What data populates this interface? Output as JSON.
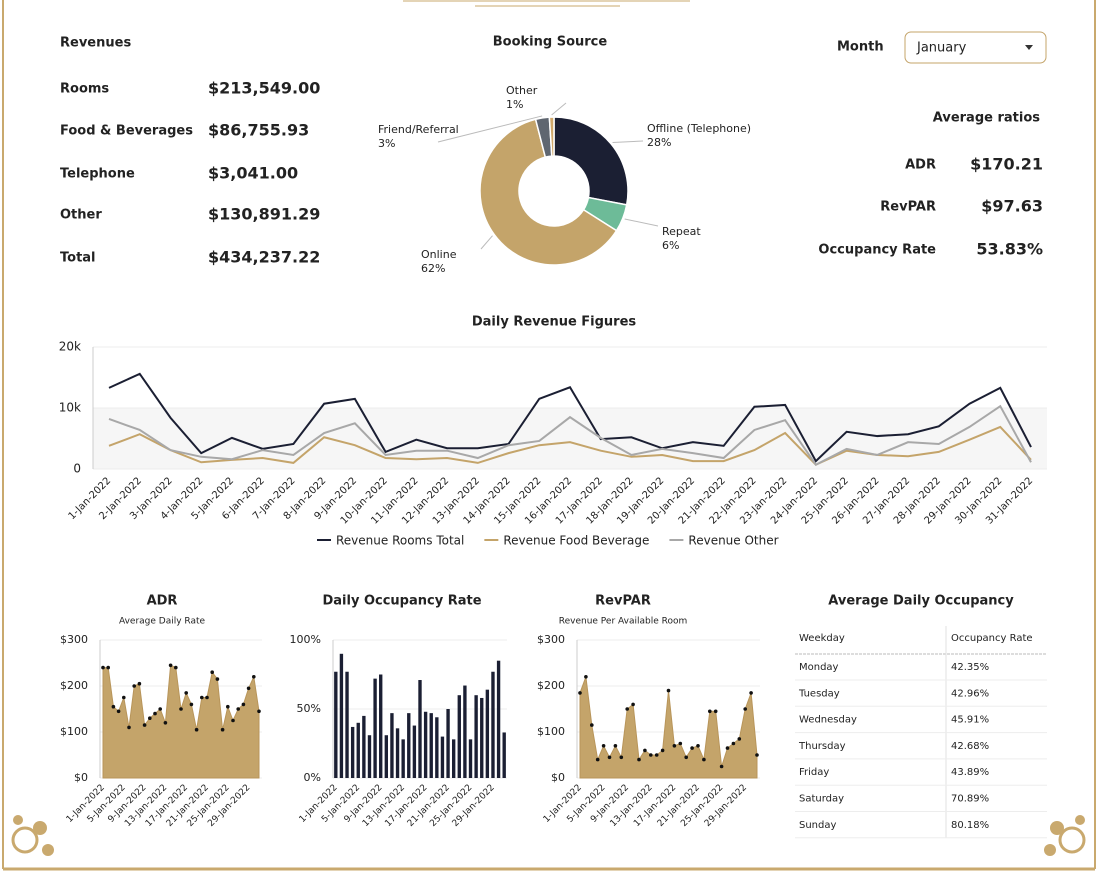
{
  "revenues": {
    "title": "Revenues",
    "items": [
      {
        "label": "Rooms",
        "value": "$213,549.00"
      },
      {
        "label": "Food & Beverages",
        "value": "$86,755.93"
      },
      {
        "label": "Telephone",
        "value": "$3,041.00"
      },
      {
        "label": "Other",
        "value": "$130,891.29"
      },
      {
        "label": "Total",
        "value": "$434,237.22"
      }
    ]
  },
  "month_filter": {
    "label": "Month",
    "value": "January"
  },
  "average_ratios": {
    "title": "Average ratios",
    "items": [
      {
        "label": "ADR",
        "value": "$170.21"
      },
      {
        "label": "RevPAR",
        "value": "$97.63"
      },
      {
        "label": "Occupancy Rate",
        "value": "53.83%"
      }
    ]
  },
  "occupancy_table": {
    "title": "Average Daily Occupancy",
    "header": [
      "Weekday",
      "Occupancy Rate"
    ],
    "rows": [
      [
        "Monday",
        "42.35%"
      ],
      [
        "Tuesday",
        "42.96%"
      ],
      [
        "Wednesday",
        "45.91%"
      ],
      [
        "Thursday",
        "42.68%"
      ],
      [
        "Friday",
        "43.89%"
      ],
      [
        "Saturday",
        "70.89%"
      ],
      [
        "Sunday",
        "80.18%"
      ]
    ]
  },
  "chart_data": [
    {
      "type": "pie",
      "title": "Booking Source",
      "categories": [
        "Offline (Telephone)",
        "Repeat",
        "Online",
        "Friend/Referral",
        "Other"
      ],
      "values": [
        28,
        6,
        62,
        3,
        1
      ],
      "value_labels": [
        "28%",
        "6%",
        "62%",
        "3%",
        "1%"
      ],
      "colors": [
        "#1b1f33",
        "#6dbb98",
        "#c4a46a",
        "#5f6670",
        "#d0a86a"
      ],
      "donut": true
    },
    {
      "type": "line",
      "title": "Daily Revenue Figures",
      "categories": [
        "1-Jan-2022",
        "2-Jan-2022",
        "3-Jan-2022",
        "4-Jan-2022",
        "5-Jan-2022",
        "6-Jan-2022",
        "7-Jan-2022",
        "8-Jan-2022",
        "9-Jan-2022",
        "10-Jan-2022",
        "11-Jan-2022",
        "12-Jan-2022",
        "13-Jan-2022",
        "14-Jan-2022",
        "15-Jan-2022",
        "16-Jan-2022",
        "17-Jan-2022",
        "18-Jan-2022",
        "19-Jan-2022",
        "20-Jan-2022",
        "21-Jan-2022",
        "22-Jan-2022",
        "23-Jan-2022",
        "24-Jan-2022",
        "25-Jan-2022",
        "26-Jan-2022",
        "27-Jan-2022",
        "28-Jan-2022",
        "29-Jan-2022",
        "30-Jan-2022",
        "31-Jan-2022"
      ],
      "series": [
        {
          "name": "Revenue Rooms Total",
          "color": "#1b1f33",
          "values": [
            13300,
            15600,
            8400,
            2600,
            5100,
            3300,
            4100,
            10700,
            11500,
            2800,
            4800,
            3400,
            3400,
            4100,
            11500,
            13400,
            4900,
            5200,
            3400,
            4400,
            3800,
            10200,
            10500,
            1300,
            6100,
            5400,
            5700,
            7000,
            10700,
            13300,
            3600
          ]
        },
        {
          "name": "Revenue Food Beverage",
          "color": "#c4a46a",
          "values": [
            3800,
            5700,
            3100,
            1100,
            1500,
            1800,
            1000,
            5200,
            3900,
            1800,
            1600,
            1800,
            1000,
            2600,
            3900,
            4400,
            3000,
            2000,
            2300,
            1300,
            1300,
            3100,
            5900,
            700,
            3000,
            2300,
            2100,
            2800,
            4800,
            6900,
            1500
          ]
        },
        {
          "name": "Revenue Other",
          "color": "#a8a8a8",
          "values": [
            8200,
            6400,
            3100,
            2000,
            1600,
            3100,
            2300,
            5900,
            7500,
            2300,
            3000,
            3000,
            1800,
            3900,
            4600,
            8500,
            5100,
            2300,
            3300,
            2600,
            1800,
            6400,
            8000,
            700,
            3300,
            2300,
            4400,
            4100,
            6900,
            10300,
            1100
          ]
        }
      ],
      "ylim": [
        0,
        20000
      ],
      "yticks": [
        0,
        {
          "value": 10000,
          "label": "10k"
        },
        {
          "value": 20000,
          "label": "20k"
        }
      ],
      "grid": true,
      "legend": "bottom"
    },
    {
      "type": "area",
      "title": "ADR",
      "subtitle": "Average Daily Rate",
      "categories": [
        "1-Jan-2022",
        null,
        null,
        null,
        "5-Jan-2022",
        null,
        null,
        null,
        "9-Jan-2022",
        null,
        null,
        null,
        "13-Jan-2022",
        null,
        null,
        null,
        "17-Jan-2022",
        null,
        null,
        null,
        "21-Jan-2022",
        null,
        null,
        null,
        "25-Jan-2022",
        null,
        null,
        null,
        "29-Jan-2022",
        null,
        null
      ],
      "values": [
        240,
        240,
        155,
        145,
        175,
        110,
        200,
        205,
        115,
        130,
        140,
        150,
        120,
        245,
        240,
        150,
        185,
        160,
        105,
        175,
        175,
        230,
        215,
        105,
        155,
        125,
        150,
        160,
        195,
        220,
        145
      ],
      "color": "#c4a46a",
      "ylim": [
        0,
        300
      ],
      "yticks": [
        {
          "value": 0,
          "label": "$0"
        },
        {
          "value": 100,
          "label": "$100"
        },
        {
          "value": 200,
          "label": "$200"
        },
        {
          "value": 300,
          "label": "$300"
        }
      ]
    },
    {
      "type": "bar",
      "title": "Daily Occupancy Rate",
      "categories": [
        "1-Jan-2022",
        null,
        null,
        null,
        "5-Jan-2022",
        null,
        null,
        null,
        "9-Jan-2022",
        null,
        null,
        null,
        "13-Jan-2022",
        null,
        null,
        null,
        "17-Jan-2022",
        null,
        null,
        null,
        "21-Jan-2022",
        null,
        null,
        null,
        "25-Jan-2022",
        null,
        null,
        null,
        "29-Jan-2022",
        null,
        null
      ],
      "values": [
        77,
        90,
        77,
        37,
        40,
        45,
        31,
        72,
        75,
        31,
        47,
        36,
        28,
        47,
        38,
        71,
        48,
        47,
        44,
        30,
        50,
        28,
        60,
        67,
        28,
        60,
        58,
        64,
        77,
        85,
        33
      ],
      "color": "#1b1f33",
      "ylim": [
        0,
        100
      ],
      "yticks": [
        {
          "value": 0,
          "label": "0%"
        },
        {
          "value": 50,
          "label": "50%"
        },
        {
          "value": 100,
          "label": "100%"
        }
      ]
    },
    {
      "type": "area",
      "title": "RevPAR",
      "subtitle": "Revenue Per Available Room",
      "categories": [
        "1-Jan-2022",
        null,
        null,
        null,
        "5-Jan-2022",
        null,
        null,
        null,
        "9-Jan-2022",
        null,
        null,
        null,
        "13-Jan-2022",
        null,
        null,
        null,
        "17-Jan-2022",
        null,
        null,
        null,
        "21-Jan-2022",
        null,
        null,
        null,
        "25-Jan-2022",
        null,
        null,
        null,
        "29-Jan-2022",
        null,
        null
      ],
      "values": [
        185,
        220,
        115,
        40,
        70,
        45,
        70,
        45,
        150,
        160,
        40,
        60,
        50,
        50,
        60,
        190,
        70,
        75,
        45,
        65,
        70,
        40,
        145,
        145,
        25,
        65,
        75,
        85,
        150,
        185,
        50
      ],
      "color": "#c4a46a",
      "ylim": [
        0,
        300
      ],
      "yticks": [
        {
          "value": 0,
          "label": "$0"
        },
        {
          "value": 100,
          "label": "$100"
        },
        {
          "value": 200,
          "label": "$200"
        },
        {
          "value": 300,
          "label": "$300"
        }
      ]
    }
  ]
}
